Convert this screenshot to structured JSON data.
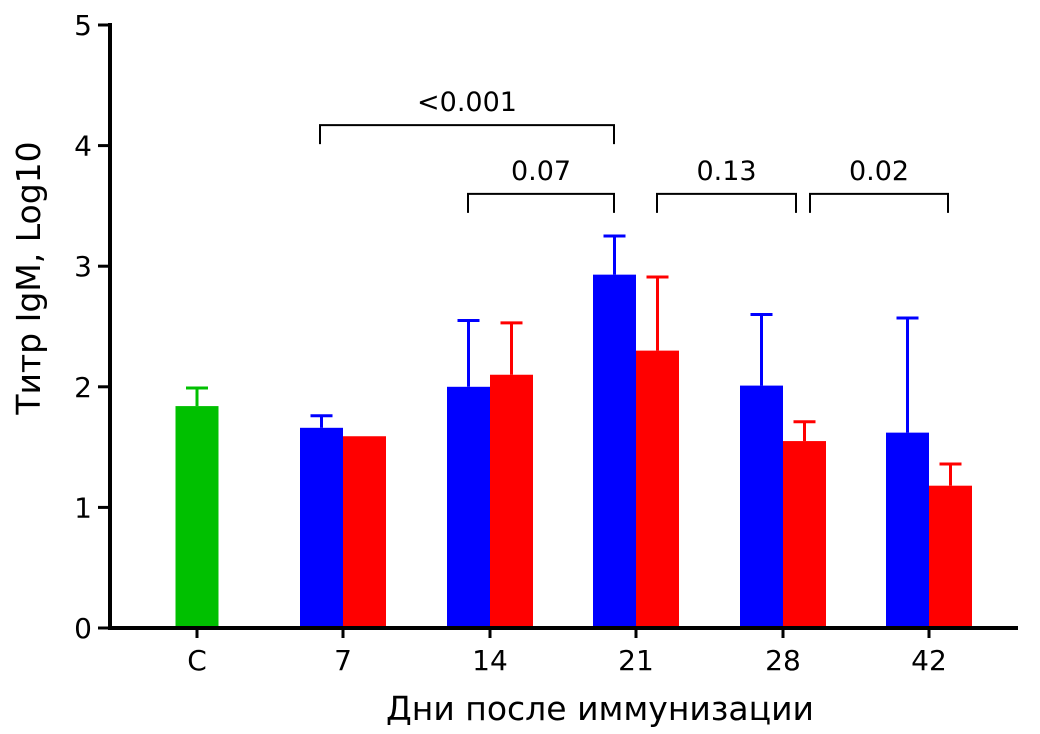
{
  "chart_data": {
    "type": "bar",
    "xlabel": "Дни после иммунизации",
    "ylabel": "Титр IgM, Log10",
    "ylim": [
      0,
      5
    ],
    "yticks": [
      "0",
      "1",
      "2",
      "3",
      "4",
      "5"
    ],
    "categories": [
      "C",
      "7",
      "14",
      "21",
      "28",
      "42"
    ],
    "groups": [
      {
        "category": "C",
        "bars": [
          {
            "color": "#00c000",
            "value": 1.84,
            "error": 0.15
          }
        ]
      },
      {
        "category": "7",
        "bars": [
          {
            "color": "#0000ff",
            "value": 1.66,
            "error": 0.1
          },
          {
            "color": "#ff0000",
            "value": 1.59,
            "error": 0
          }
        ]
      },
      {
        "category": "14",
        "bars": [
          {
            "color": "#0000ff",
            "value": 2.0,
            "error": 0.55
          },
          {
            "color": "#ff0000",
            "value": 2.1,
            "error": 0.43
          }
        ]
      },
      {
        "category": "21",
        "bars": [
          {
            "color": "#0000ff",
            "value": 2.93,
            "error": 0.32
          },
          {
            "color": "#ff0000",
            "value": 2.3,
            "error": 0.61
          }
        ]
      },
      {
        "category": "28",
        "bars": [
          {
            "color": "#0000ff",
            "value": 2.01,
            "error": 0.59
          },
          {
            "color": "#ff0000",
            "value": 1.55,
            "error": 0.16
          }
        ]
      },
      {
        "category": "42",
        "bars": [
          {
            "color": "#0000ff",
            "value": 1.62,
            "error": 0.95
          },
          {
            "color": "#ff0000",
            "value": 1.18,
            "error": 0.18
          }
        ]
      }
    ],
    "annotations": [
      {
        "label": "<0.001",
        "from": "7",
        "to": "21",
        "level": 4.17
      },
      {
        "label": "0.07",
        "from": "14",
        "to": "21",
        "level": 3.6
      },
      {
        "label": "0.13",
        "from": "21",
        "to": "28",
        "level": 3.6
      },
      {
        "label": "0.02",
        "from": "28",
        "to": "42",
        "level": 3.6
      }
    ]
  }
}
